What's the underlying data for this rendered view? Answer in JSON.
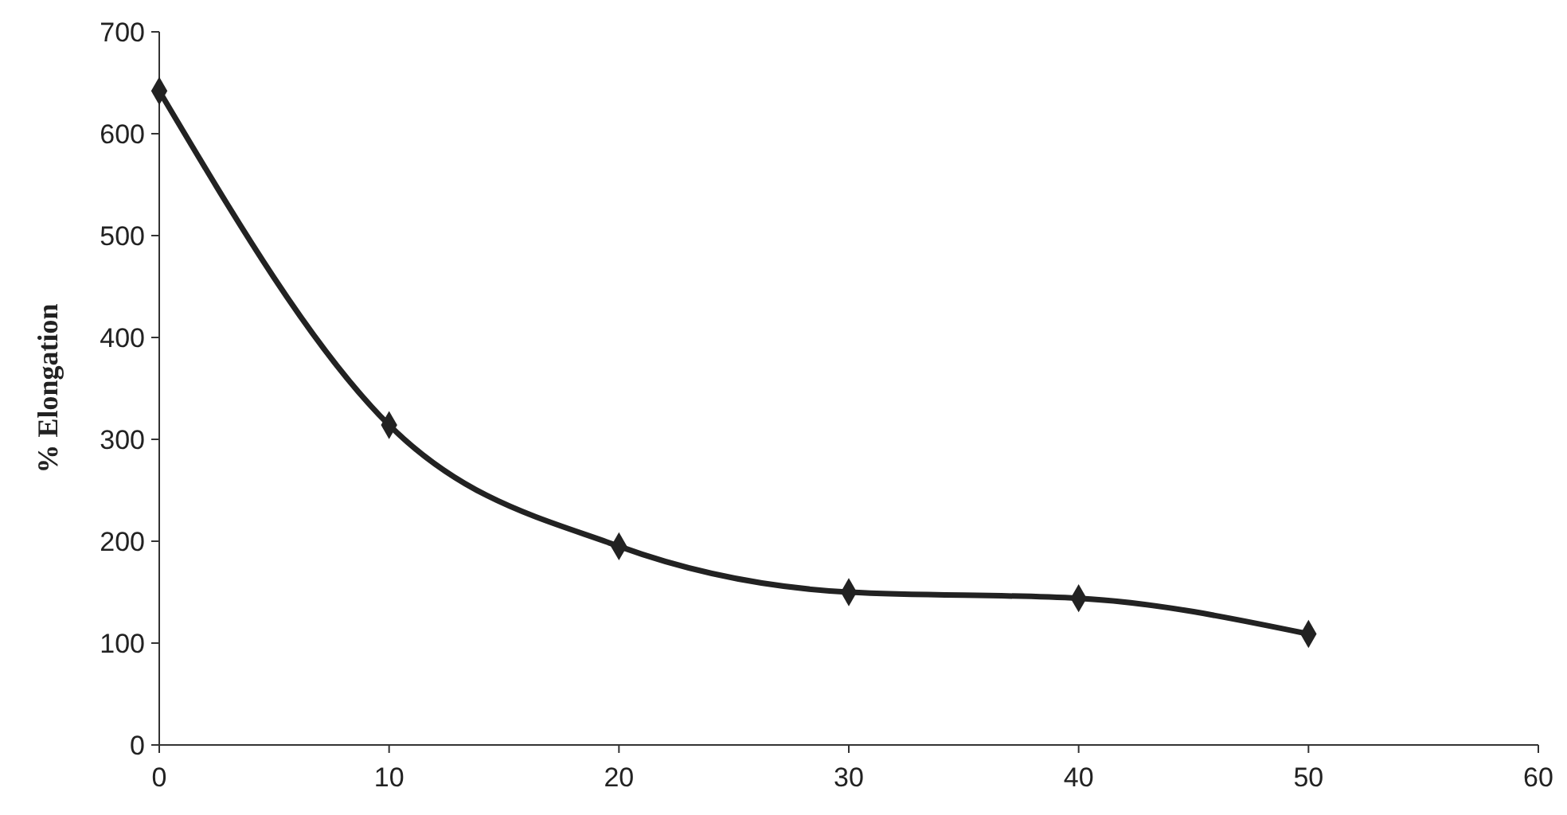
{
  "chart_data": {
    "type": "line",
    "ylabel": "% Elongation",
    "x": [
      0,
      10,
      20,
      30,
      40,
      50
    ],
    "series": [
      {
        "color": "#222222",
        "values": [
          642,
          314,
          195,
          150,
          144,
          109
        ]
      }
    ],
    "xlim": [
      0,
      60
    ],
    "xticks": [
      0,
      10,
      20,
      30,
      40,
      50,
      60
    ],
    "ylim": [
      0,
      700
    ],
    "yticks": [
      0,
      100,
      200,
      300,
      400,
      500,
      600,
      700
    ],
    "marker": "diamond",
    "line_style": "solid",
    "grid": false
  }
}
